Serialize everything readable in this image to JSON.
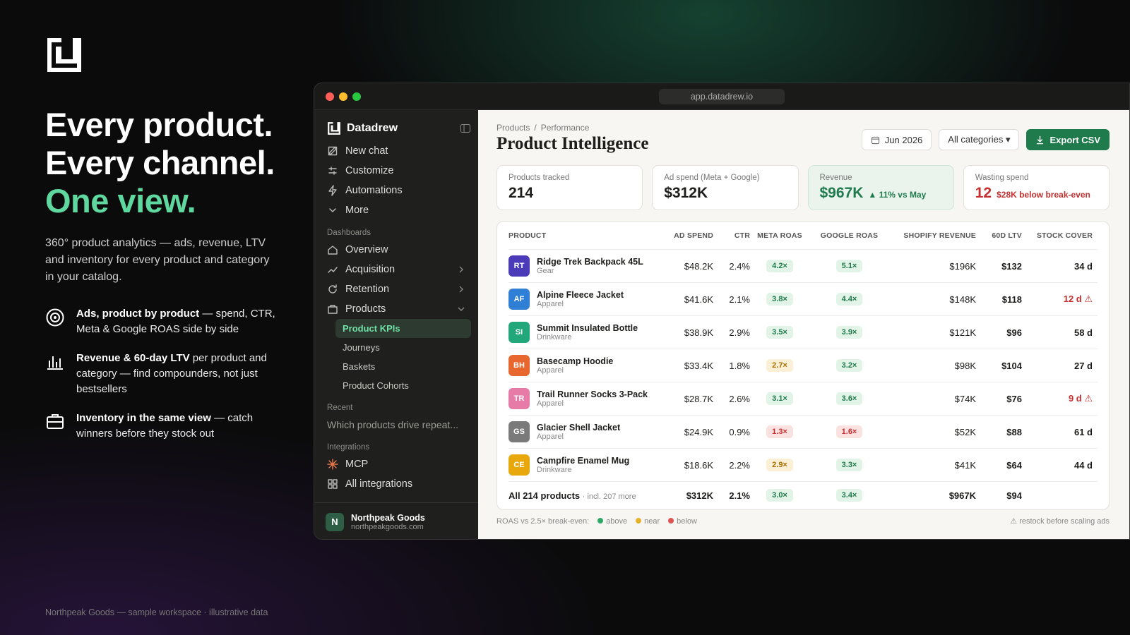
{
  "hero": {
    "headline": [
      "Every product.",
      "Every channel.",
      "One view."
    ],
    "description": "360° product analytics — ads, revenue, LTV and inventory for every product and category in your catalog.",
    "features": [
      {
        "strong": "Ads, product by product",
        "text": "— spend, CTR, Meta & Google ROAS side by side"
      },
      {
        "strong": "Revenue & 60-day LTV",
        "text": "per product and category — find compounders, not just bestsellers"
      },
      {
        "strong": "Inventory in the same view",
        "text": "— catch winners before they stock out"
      }
    ],
    "footer": "Northpeak Goods — sample workspace · illustrative data"
  },
  "window": {
    "url": "app.datadrew.io"
  },
  "sidebar": {
    "brand": "Datadrew",
    "nav": [
      "New chat",
      "Customize",
      "Automations",
      "More"
    ],
    "dashboards": {
      "label": "Dashboards",
      "items": [
        "Overview",
        "Acquisition",
        "Retention",
        "Products"
      ],
      "children": [
        "Product KPIs",
        "Journeys",
        "Baskets",
        "Product Cohorts"
      ]
    },
    "recent": {
      "label": "Recent",
      "items": [
        "Which products drive repeat..."
      ]
    },
    "integrations": {
      "label": "Integrations",
      "items": [
        "MCP",
        "All integrations"
      ]
    },
    "account": {
      "initial": "N",
      "name": "Northpeak Goods",
      "email": "northpeakgoods.com"
    }
  },
  "main": {
    "breadcrumb": [
      "Products",
      "Performance"
    ],
    "separator": "/",
    "title": "Product Intelligence",
    "date": "Jun 2026",
    "filter": "All categories ▾",
    "export": "Export CSV",
    "kpis": [
      {
        "label": "Products tracked",
        "value": "214"
      },
      {
        "label": "Ad spend (Meta + Google)",
        "value": "$312K"
      },
      {
        "label": "Revenue",
        "value": "$967K",
        "note": "▲ 11% vs May",
        "tone": "good"
      },
      {
        "label": "Wasting spend",
        "value": "12",
        "note": "$28K below break-even",
        "tone": "bad"
      }
    ]
  },
  "table": {
    "headers": [
      "PRODUCT",
      "AD SPEND",
      "CTR",
      "META ROAS",
      "GOOGLE ROAS",
      "SHOPIFY REVENUE",
      "60D LTV",
      "STOCK COVER"
    ],
    "rows": [
      {
        "initials": "RT",
        "color": "#4c3bb8",
        "name": "Ridge Trek Backpack 45L",
        "category": "Gear",
        "ad_spend": "$48.2K",
        "ctr": "2.4%",
        "meta": "4.2×",
        "meta_status": "above",
        "google": "5.1×",
        "google_status": "above",
        "revenue": "$196K",
        "ltv": "$132",
        "stock": "34 d"
      },
      {
        "initials": "AF",
        "color": "#2f7fd6",
        "name": "Alpine Fleece Jacket",
        "category": "Apparel",
        "ad_spend": "$41.6K",
        "ctr": "2.1%",
        "meta": "3.8×",
        "meta_status": "above",
        "google": "4.4×",
        "google_status": "above",
        "revenue": "$148K",
        "ltv": "$118",
        "stock": "12 d ⚠",
        "stock_alert": true
      },
      {
        "initials": "SI",
        "color": "#22a77a",
        "name": "Summit Insulated Bottle",
        "category": "Drinkware",
        "ad_spend": "$38.9K",
        "ctr": "2.9%",
        "meta": "3.5×",
        "meta_status": "above",
        "google": "3.9×",
        "google_status": "above",
        "revenue": "$121K",
        "ltv": "$96",
        "stock": "58 d"
      },
      {
        "initials": "BH",
        "color": "#e8672f",
        "name": "Basecamp Hoodie",
        "category": "Apparel",
        "ad_spend": "$33.4K",
        "ctr": "1.8%",
        "meta": "2.7×",
        "meta_status": "near",
        "google": "3.2×",
        "google_status": "above",
        "revenue": "$98K",
        "ltv": "$104",
        "stock": "27 d"
      },
      {
        "initials": "TR",
        "color": "#e67ba7",
        "name": "Trail Runner Socks 3-Pack",
        "category": "Apparel",
        "ad_spend": "$28.7K",
        "ctr": "2.6%",
        "meta": "3.1×",
        "meta_status": "above",
        "google": "3.6×",
        "google_status": "above",
        "revenue": "$74K",
        "ltv": "$76",
        "stock": "9 d ⚠",
        "stock_alert": true
      },
      {
        "initials": "GS",
        "color": "#7a7a7a",
        "name": "Glacier Shell Jacket",
        "category": "Apparel",
        "ad_spend": "$24.9K",
        "ctr": "0.9%",
        "meta": "1.3×",
        "meta_status": "below",
        "google": "1.6×",
        "google_status": "below",
        "revenue": "$52K",
        "ltv": "$88",
        "stock": "61 d"
      },
      {
        "initials": "CE",
        "color": "#e8a70a",
        "name": "Campfire Enamel Mug",
        "category": "Drinkware",
        "ad_spend": "$18.6K",
        "ctr": "2.2%",
        "meta": "2.9×",
        "meta_status": "near",
        "google": "3.3×",
        "google_status": "above",
        "revenue": "$41K",
        "ltv": "$64",
        "stock": "44 d"
      }
    ],
    "total": {
      "name": "All 214 products",
      "note": "· incl. 207 more",
      "ad_spend": "$312K",
      "ctr": "2.1%",
      "meta": "3.0×",
      "meta_status": "above",
      "google": "3.4×",
      "google_status": "above",
      "revenue": "$967K",
      "ltv": "$94"
    }
  },
  "legend": {
    "label": "ROAS vs 2.5× break-even:",
    "items": [
      {
        "status": "above",
        "label": "above"
      },
      {
        "status": "near",
        "label": "near"
      },
      {
        "status": "below",
        "label": "below"
      }
    ],
    "note": "⚠ restock before scaling ads"
  }
}
